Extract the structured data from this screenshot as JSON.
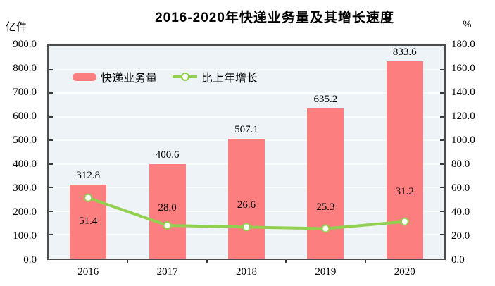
{
  "title": "2016-2020年快递业务量及其增长速度",
  "left_axis": {
    "unit": "亿件",
    "tick_labels": [
      "900.0",
      "800.0",
      "700.0",
      "600.0",
      "500.0",
      "400.0",
      "300.0",
      "200.0",
      "100.0",
      "0.0"
    ]
  },
  "right_axis": {
    "unit": "%",
    "tick_labels": [
      "180.0",
      "160.0",
      "140.0",
      "120.0",
      "100.0",
      "80.0",
      "60.0",
      "40.0",
      "20.0",
      "0.0"
    ]
  },
  "legend": {
    "bar_label": "快递业务量",
    "line_label": "比上年增长"
  },
  "chart_data": {
    "type": "bar",
    "categories": [
      "2016",
      "2017",
      "2018",
      "2019",
      "2020"
    ],
    "series": [
      {
        "name": "快递业务量",
        "type": "bar",
        "axis": "left",
        "unit": "亿件",
        "values": [
          312.8,
          400.6,
          507.1,
          635.2,
          833.6
        ]
      },
      {
        "name": "比上年增长",
        "type": "line",
        "axis": "right",
        "unit": "%",
        "values": [
          51.4,
          28.0,
          26.6,
          25.3,
          31.2
        ]
      }
    ],
    "title": "2016-2020年快递业务量及其增长速度",
    "xlabel": "",
    "ylabel_left": "亿件",
    "ylabel_right": "%",
    "ylim_left": [
      0,
      900
    ],
    "ylim_right": [
      0,
      180
    ],
    "grid": true,
    "legend_position": "top-left-inside"
  },
  "colors": {
    "bar": "#fc7e7e",
    "line": "#92d050",
    "marker_fill": "#ffffff",
    "plot_background": "#edf3f7",
    "gridline": "#fafdfe",
    "border": "#4e4e4e",
    "tick": "#3a3a3a",
    "text": "#000000"
  }
}
